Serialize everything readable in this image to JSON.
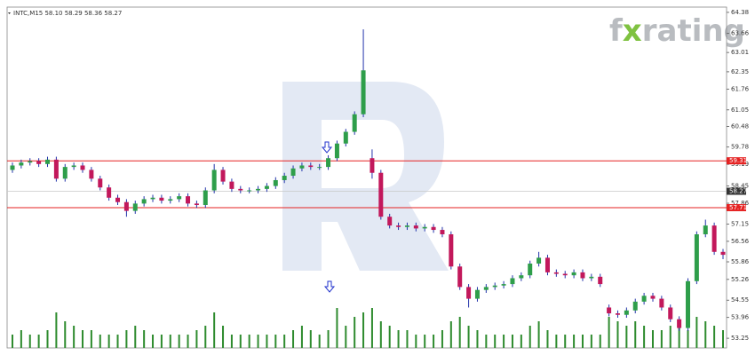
{
  "chart_data": {
    "type": "candlestick",
    "title": "INTC,M15 58.10 58.29 58.36 58.27",
    "brand": [
      "f",
      "x",
      "rating"
    ],
    "open": [
      59.0,
      59.15,
      59.25,
      59.3,
      59.2,
      59.35,
      58.7,
      59.1,
      59.15,
      59.0,
      58.7,
      58.4,
      58.05,
      57.9,
      57.6,
      57.85,
      58.0,
      58.05,
      57.95,
      58.0,
      58.1,
      57.85,
      57.8,
      58.3,
      59.0,
      58.6,
      58.35,
      58.3,
      58.3,
      58.35,
      58.45,
      58.65,
      58.8,
      59.05,
      59.15,
      59.1,
      59.1,
      59.4,
      59.9,
      60.3,
      60.9,
      59.4,
      58.9,
      57.4,
      57.1,
      57.05,
      57.1,
      57.0,
      57.05,
      56.95,
      56.8,
      55.7,
      55.0,
      54.6,
      54.9,
      55.0,
      55.05,
      55.1,
      55.3,
      55.4,
      55.8,
      56.0,
      55.5,
      55.45,
      55.4,
      55.5,
      55.3,
      55.35,
      54.3,
      54.1,
      54.05,
      54.2,
      54.5,
      54.7,
      54.6,
      54.3,
      53.9,
      53.6,
      55.2,
      56.8,
      57.1,
      56.2
    ],
    "high": [
      59.25,
      59.35,
      59.4,
      59.4,
      59.45,
      59.45,
      59.2,
      59.25,
      59.25,
      59.1,
      58.8,
      58.5,
      58.15,
      58.0,
      57.95,
      58.1,
      58.15,
      58.15,
      58.1,
      58.2,
      58.2,
      57.95,
      58.4,
      59.2,
      59.1,
      58.7,
      58.45,
      58.4,
      58.45,
      58.55,
      58.75,
      58.9,
      59.15,
      59.25,
      59.25,
      59.2,
      59.5,
      60.0,
      60.4,
      61.0,
      63.8,
      59.7,
      59.0,
      57.5,
      57.2,
      57.2,
      57.2,
      57.15,
      57.15,
      57.05,
      56.9,
      55.8,
      55.1,
      55.0,
      55.1,
      55.15,
      55.2,
      55.4,
      55.5,
      55.9,
      56.2,
      56.1,
      55.6,
      55.55,
      55.6,
      55.6,
      55.45,
      55.45,
      54.4,
      54.2,
      54.3,
      54.6,
      54.8,
      54.8,
      54.7,
      54.4,
      54.0,
      55.3,
      56.9,
      57.3,
      57.2,
      56.3
    ],
    "low": [
      58.9,
      59.05,
      59.15,
      59.1,
      59.1,
      58.6,
      58.6,
      59.0,
      58.9,
      58.6,
      58.3,
      57.95,
      57.8,
      57.4,
      57.5,
      57.75,
      57.9,
      57.85,
      57.85,
      57.9,
      57.75,
      57.7,
      57.7,
      58.2,
      58.5,
      58.25,
      58.2,
      58.2,
      58.2,
      58.25,
      58.35,
      58.55,
      58.7,
      58.95,
      59.0,
      59.0,
      59.0,
      59.3,
      59.8,
      60.2,
      60.8,
      58.7,
      57.3,
      57.0,
      56.95,
      56.95,
      56.9,
      56.9,
      56.85,
      56.7,
      55.6,
      54.9,
      54.3,
      54.5,
      54.8,
      54.9,
      54.95,
      55.0,
      55.2,
      55.3,
      55.7,
      55.4,
      55.35,
      55.3,
      55.3,
      55.2,
      55.2,
      55.0,
      54.0,
      53.95,
      53.95,
      54.1,
      54.4,
      54.5,
      54.2,
      53.8,
      53.5,
      53.5,
      55.1,
      56.7,
      56.1,
      55.95
    ],
    "close": [
      59.15,
      59.25,
      59.3,
      59.2,
      59.35,
      58.7,
      59.1,
      59.15,
      59.0,
      58.7,
      58.4,
      58.05,
      57.9,
      57.6,
      57.85,
      58.0,
      58.05,
      57.95,
      58.0,
      58.1,
      57.85,
      57.8,
      58.3,
      59.0,
      58.6,
      58.35,
      58.3,
      58.3,
      58.35,
      58.45,
      58.65,
      58.8,
      59.05,
      59.15,
      59.1,
      59.1,
      59.4,
      59.9,
      60.3,
      60.9,
      62.4,
      58.9,
      57.4,
      57.1,
      57.05,
      57.1,
      57.0,
      57.05,
      56.95,
      56.8,
      55.7,
      55.0,
      54.6,
      54.9,
      55.0,
      55.05,
      55.1,
      55.3,
      55.4,
      55.8,
      56.0,
      55.5,
      55.45,
      55.4,
      55.5,
      55.3,
      55.35,
      55.1,
      54.1,
      54.05,
      54.2,
      54.5,
      54.7,
      54.6,
      54.3,
      53.9,
      53.6,
      55.2,
      56.8,
      57.1,
      56.2,
      56.1
    ],
    "volumes": [
      3,
      4,
      3,
      3,
      4,
      8,
      6,
      5,
      4,
      4,
      3,
      3,
      3,
      4,
      5,
      4,
      3,
      3,
      3,
      3,
      3,
      4,
      5,
      8,
      5,
      3,
      3,
      3,
      3,
      3,
      3,
      3,
      4,
      5,
      4,
      3,
      4,
      9,
      5,
      7,
      8,
      9,
      6,
      5,
      4,
      4,
      3,
      3,
      3,
      4,
      6,
      7,
      5,
      4,
      3,
      3,
      3,
      3,
      3,
      5,
      6,
      4,
      3,
      3,
      3,
      3,
      3,
      3,
      7,
      6,
      5,
      6,
      5,
      4,
      4,
      5,
      6,
      4,
      7,
      6,
      5,
      4
    ],
    "up_color": "#2e9e4a",
    "down_color": "#c2185b",
    "wick_color": "#2233aa",
    "volume_color": "#2e8b2e",
    "ylim": [
      52.92,
      64.56
    ],
    "yticks": [
      64.38,
      63.66,
      63.01,
      62.35,
      61.76,
      61.05,
      60.48,
      59.78,
      59.19,
      58.45,
      57.86,
      57.15,
      56.56,
      55.86,
      55.26,
      54.55,
      53.96,
      53.25
    ],
    "levels": [
      {
        "value": 59.31,
        "color": "#e52222"
      },
      {
        "value": 57.71,
        "color": "#e52222"
      }
    ],
    "current_price": 58.27
  }
}
